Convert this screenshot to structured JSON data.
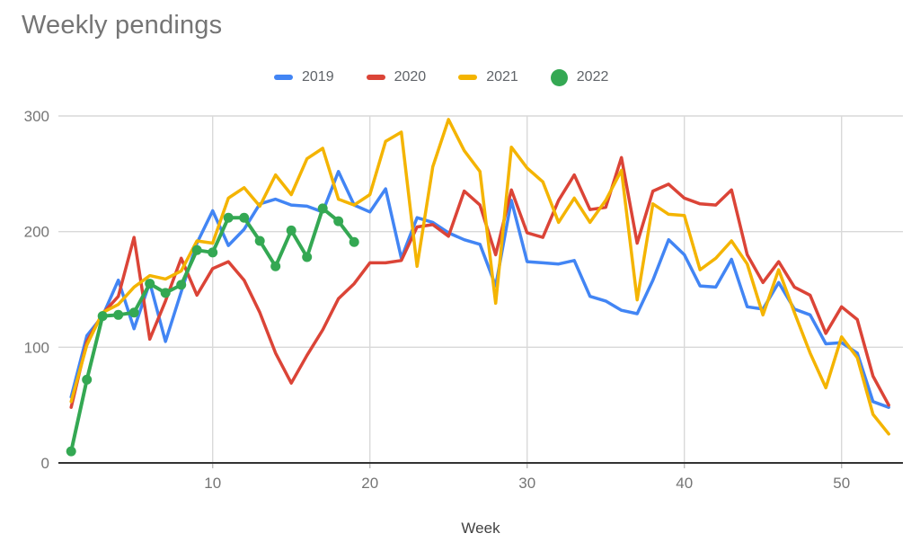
{
  "title": "Weekly pendings",
  "chart_data": {
    "type": "line",
    "title": "Weekly pendings",
    "xlabel": "Week",
    "ylabel": "",
    "xlim": [
      1,
      53
    ],
    "ylim": [
      0,
      300
    ],
    "xticks": [
      10,
      20,
      30,
      40,
      50
    ],
    "yticks": [
      0,
      100,
      200,
      300
    ],
    "grid": true,
    "legend_position": "top",
    "x_unit": "week_number",
    "first_week": 1,
    "series": [
      {
        "name": "2019",
        "color": "#4285F4",
        "marker": "line",
        "values": [
          57,
          110,
          127,
          158,
          116,
          156,
          105,
          148,
          190,
          218,
          188,
          202,
          224,
          228,
          223,
          222,
          217,
          252,
          223,
          217,
          237,
          177,
          212,
          208,
          199,
          193,
          189,
          153,
          227,
          174,
          173,
          172,
          175,
          144,
          140,
          132,
          129,
          158,
          193,
          180,
          153,
          152,
          176,
          135,
          133,
          156,
          133,
          128,
          103,
          104,
          95,
          53,
          48
        ]
      },
      {
        "name": "2020",
        "color": "#DB4437",
        "marker": "line",
        "values": [
          48,
          105,
          129,
          144,
          195,
          107,
          140,
          177,
          145,
          168,
          174,
          158,
          130,
          95,
          69,
          93,
          115,
          142,
          155,
          173,
          173,
          175,
          204,
          206,
          196,
          235,
          223,
          180,
          236,
          199,
          195,
          227,
          249,
          219,
          221,
          264,
          190,
          235,
          241,
          229,
          224,
          223,
          236,
          180,
          156,
          174,
          152,
          145,
          112,
          135,
          124,
          75,
          50
        ]
      },
      {
        "name": "2021",
        "color": "#F4B400",
        "marker": "line",
        "values": [
          53,
          102,
          130,
          137,
          152,
          162,
          159,
          166,
          192,
          190,
          229,
          238,
          222,
          249,
          232,
          263,
          272,
          228,
          223,
          232,
          278,
          286,
          170,
          256,
          297,
          270,
          252,
          138,
          273,
          255,
          243,
          208,
          229,
          208,
          227,
          253,
          141,
          224,
          215,
          214,
          167,
          177,
          192,
          172,
          128,
          167,
          130,
          95,
          65,
          109,
          91,
          42,
          25
        ]
      },
      {
        "name": "2022",
        "color": "#34A853",
        "marker": "circle",
        "values": [
          10,
          72,
          127,
          128,
          130,
          155,
          147,
          154,
          184,
          182,
          212,
          212,
          192,
          170,
          201,
          178,
          220,
          209,
          191
        ]
      }
    ]
  },
  "colors": {
    "grid": "#d9d9d9",
    "axis": "#333333",
    "tick_stub": "#bdbdbd",
    "tick_label": "#757575",
    "title": "#757575",
    "legend_label": "#5f6368",
    "axis_title": "#424242"
  }
}
